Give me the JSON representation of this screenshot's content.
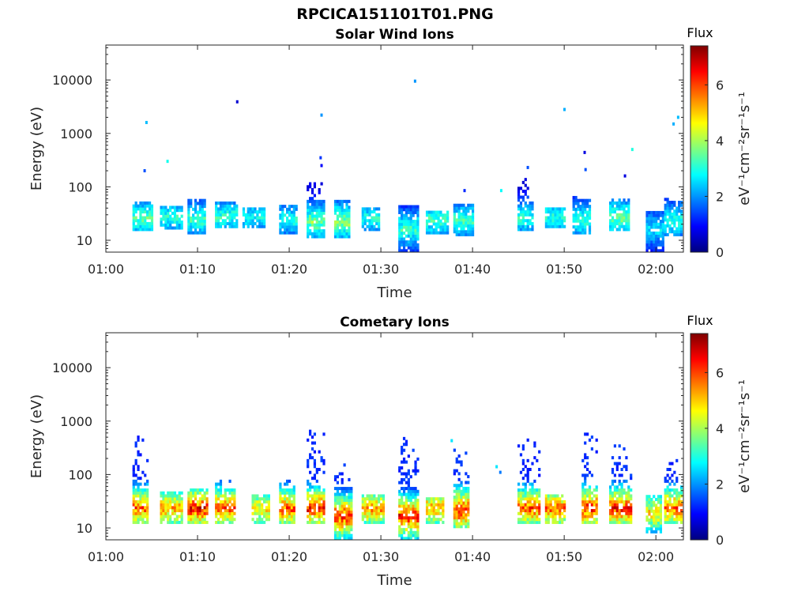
{
  "figure_title": "RPCICA151101T01.PNG",
  "colors": {
    "colormap": [
      "#00007f",
      "#0000ff",
      "#007fff",
      "#00ffff",
      "#7fff7f",
      "#ffff00",
      "#ff7f00",
      "#ff0000",
      "#7f0000"
    ],
    "axis": "#262626",
    "background": "#ffffff"
  },
  "chart_data": [
    {
      "type": "heatmap",
      "title": "Solar Wind Ions",
      "xlabel": "Time",
      "ylabel": "Energy (eV)",
      "yscale": "log",
      "xlim": [
        "01:00",
        "02:03"
      ],
      "ylim": [
        6,
        45000
      ],
      "xticks": [
        "01:00",
        "01:10",
        "01:20",
        "01:30",
        "01:40",
        "01:50",
        "02:00"
      ],
      "yticks": [
        10,
        100,
        1000,
        10000
      ],
      "ytick_labels": [
        "10",
        "100",
        "1000",
        "10000"
      ],
      "colorbar": {
        "title": "Flux",
        "unit_label": "eV⁻¹cm⁻²sr⁻¹s⁻¹",
        "range": [
          0,
          7.4
        ],
        "ticks": [
          0,
          2,
          4,
          6
        ]
      },
      "bursts": [
        {
          "t": "01:03",
          "e_min": 15,
          "e_max": 50,
          "peak": 3.8
        },
        {
          "t": "01:06",
          "e_min": 16,
          "e_max": 42,
          "peak": 3.4
        },
        {
          "t": "01:09",
          "e_min": 13,
          "e_max": 55,
          "peak": 3.6
        },
        {
          "t": "01:12",
          "e_min": 17,
          "e_max": 50,
          "peak": 3.5
        },
        {
          "t": "01:15",
          "e_min": 17,
          "e_max": 40,
          "peak": 3.2
        },
        {
          "t": "01:19",
          "e_min": 13,
          "e_max": 45,
          "peak": 3.3
        },
        {
          "t": "01:22",
          "e_min": 11,
          "e_max": 110,
          "peak": 4.1
        },
        {
          "t": "01:25",
          "e_min": 11,
          "e_max": 55,
          "peak": 4.3
        },
        {
          "t": "01:28",
          "e_min": 15,
          "e_max": 40,
          "peak": 3.3
        },
        {
          "t": "01:32",
          "e_min": 6,
          "e_max": 45,
          "peak": 3.6
        },
        {
          "t": "01:35",
          "e_min": 13,
          "e_max": 35,
          "peak": 3.6
        },
        {
          "t": "01:38",
          "e_min": 12,
          "e_max": 45,
          "peak": 3.6
        },
        {
          "t": "01:45",
          "e_min": 15,
          "e_max": 150,
          "peak": 3.5
        },
        {
          "t": "01:48",
          "e_min": 17,
          "e_max": 40,
          "peak": 3.4
        },
        {
          "t": "01:51",
          "e_min": 13,
          "e_max": 60,
          "peak": 3.6
        },
        {
          "t": "01:55",
          "e_min": 15,
          "e_max": 55,
          "peak": 4.0
        },
        {
          "t": "01:59",
          "e_min": 6,
          "e_max": 35,
          "peak": 3.0
        },
        {
          "t": "02:01",
          "e_min": 12,
          "e_max": 60,
          "peak": 3.4
        }
      ],
      "isolated_points": [
        {
          "t": "01:04.3",
          "e": 1600,
          "v": 2.3
        },
        {
          "t": "01:04.1",
          "e": 200,
          "v": 1.5
        },
        {
          "t": "01:06.6",
          "e": 300,
          "v": 2.9
        },
        {
          "t": "01:14.2",
          "e": 3900,
          "v": 0.6
        },
        {
          "t": "01:23.4",
          "e": 2200,
          "v": 2.0
        },
        {
          "t": "01:23.3",
          "e": 350,
          "v": 1.3
        },
        {
          "t": "01:23.4",
          "e": 250,
          "v": 0.9
        },
        {
          "t": "01:33.6",
          "e": 9500,
          "v": 2.0
        },
        {
          "t": "01:39.0",
          "e": 85,
          "v": 1.2
        },
        {
          "t": "01:43.0",
          "e": 85,
          "v": 2.8
        },
        {
          "t": "01:45.9",
          "e": 230,
          "v": 1.5
        },
        {
          "t": "01:49.9",
          "e": 2800,
          "v": 2.2
        },
        {
          "t": "01:52.1",
          "e": 440,
          "v": 0.7
        },
        {
          "t": "01:52.2",
          "e": 210,
          "v": 1.5
        },
        {
          "t": "01:56.5",
          "e": 160,
          "v": 0.7
        },
        {
          "t": "01:57.3",
          "e": 500,
          "v": 3.0
        },
        {
          "t": "02:01.8",
          "e": 1500,
          "v": 2.2
        },
        {
          "t": "02:02.3",
          "e": 2000,
          "v": 2.3
        }
      ]
    },
    {
      "type": "heatmap",
      "title": "Cometary Ions",
      "xlabel": "Time",
      "ylabel": "Energy (eV)",
      "yscale": "log",
      "xlim": [
        "01:00",
        "02:03"
      ],
      "ylim": [
        6,
        45000
      ],
      "xticks": [
        "01:00",
        "01:10",
        "01:20",
        "01:30",
        "01:40",
        "01:50",
        "02:00"
      ],
      "yticks": [
        10,
        100,
        1000,
        10000
      ],
      "ytick_labels": [
        "10",
        "100",
        "1000",
        "10000"
      ],
      "colorbar": {
        "title": "Flux",
        "unit_label": "eV⁻¹cm⁻²sr⁻¹s⁻¹",
        "range": [
          0,
          7.4
        ],
        "ticks": [
          0,
          2,
          4,
          6
        ]
      },
      "bursts": [
        {
          "t": "01:03",
          "e_min": 12,
          "e_max": 500,
          "peak": 6.5
        },
        {
          "t": "01:06",
          "e_min": 12,
          "e_max": 45,
          "peak": 6.0
        },
        {
          "t": "01:09",
          "e_min": 12,
          "e_max": 50,
          "peak": 7.0
        },
        {
          "t": "01:12",
          "e_min": 12,
          "e_max": 80,
          "peak": 6.5
        },
        {
          "t": "01:16",
          "e_min": 12,
          "e_max": 40,
          "peak": 5.5
        },
        {
          "t": "01:19",
          "e_min": 12,
          "e_max": 80,
          "peak": 6.5
        },
        {
          "t": "01:22",
          "e_min": 12,
          "e_max": 700,
          "peak": 7.0
        },
        {
          "t": "01:25",
          "e_min": 6,
          "e_max": 150,
          "peak": 7.0
        },
        {
          "t": "01:28",
          "e_min": 12,
          "e_max": 40,
          "peak": 6.0
        },
        {
          "t": "01:32",
          "e_min": 6,
          "e_max": 450,
          "peak": 7.0
        },
        {
          "t": "01:35",
          "e_min": 12,
          "e_max": 35,
          "peak": 6.0
        },
        {
          "t": "01:38",
          "e_min": 10,
          "e_max": 300,
          "peak": 7.0
        },
        {
          "t": "01:45",
          "e_min": 12,
          "e_max": 450,
          "peak": 6.5
        },
        {
          "t": "01:48",
          "e_min": 12,
          "e_max": 40,
          "peak": 6.5
        },
        {
          "t": "01:52",
          "e_min": 12,
          "e_max": 600,
          "peak": 7.0
        },
        {
          "t": "01:55",
          "e_min": 12,
          "e_max": 350,
          "peak": 7.0
        },
        {
          "t": "01:59",
          "e_min": 8,
          "e_max": 40,
          "peak": 5.5
        },
        {
          "t": "02:01",
          "e_min": 12,
          "e_max": 200,
          "peak": 6.5
        }
      ],
      "isolated_points": [
        {
          "t": "01:37.6",
          "e": 430,
          "v": 2.6
        },
        {
          "t": "01:42.5",
          "e": 140,
          "v": 2.6
        },
        {
          "t": "01:42.9",
          "e": 110,
          "v": 1.8
        }
      ]
    }
  ]
}
